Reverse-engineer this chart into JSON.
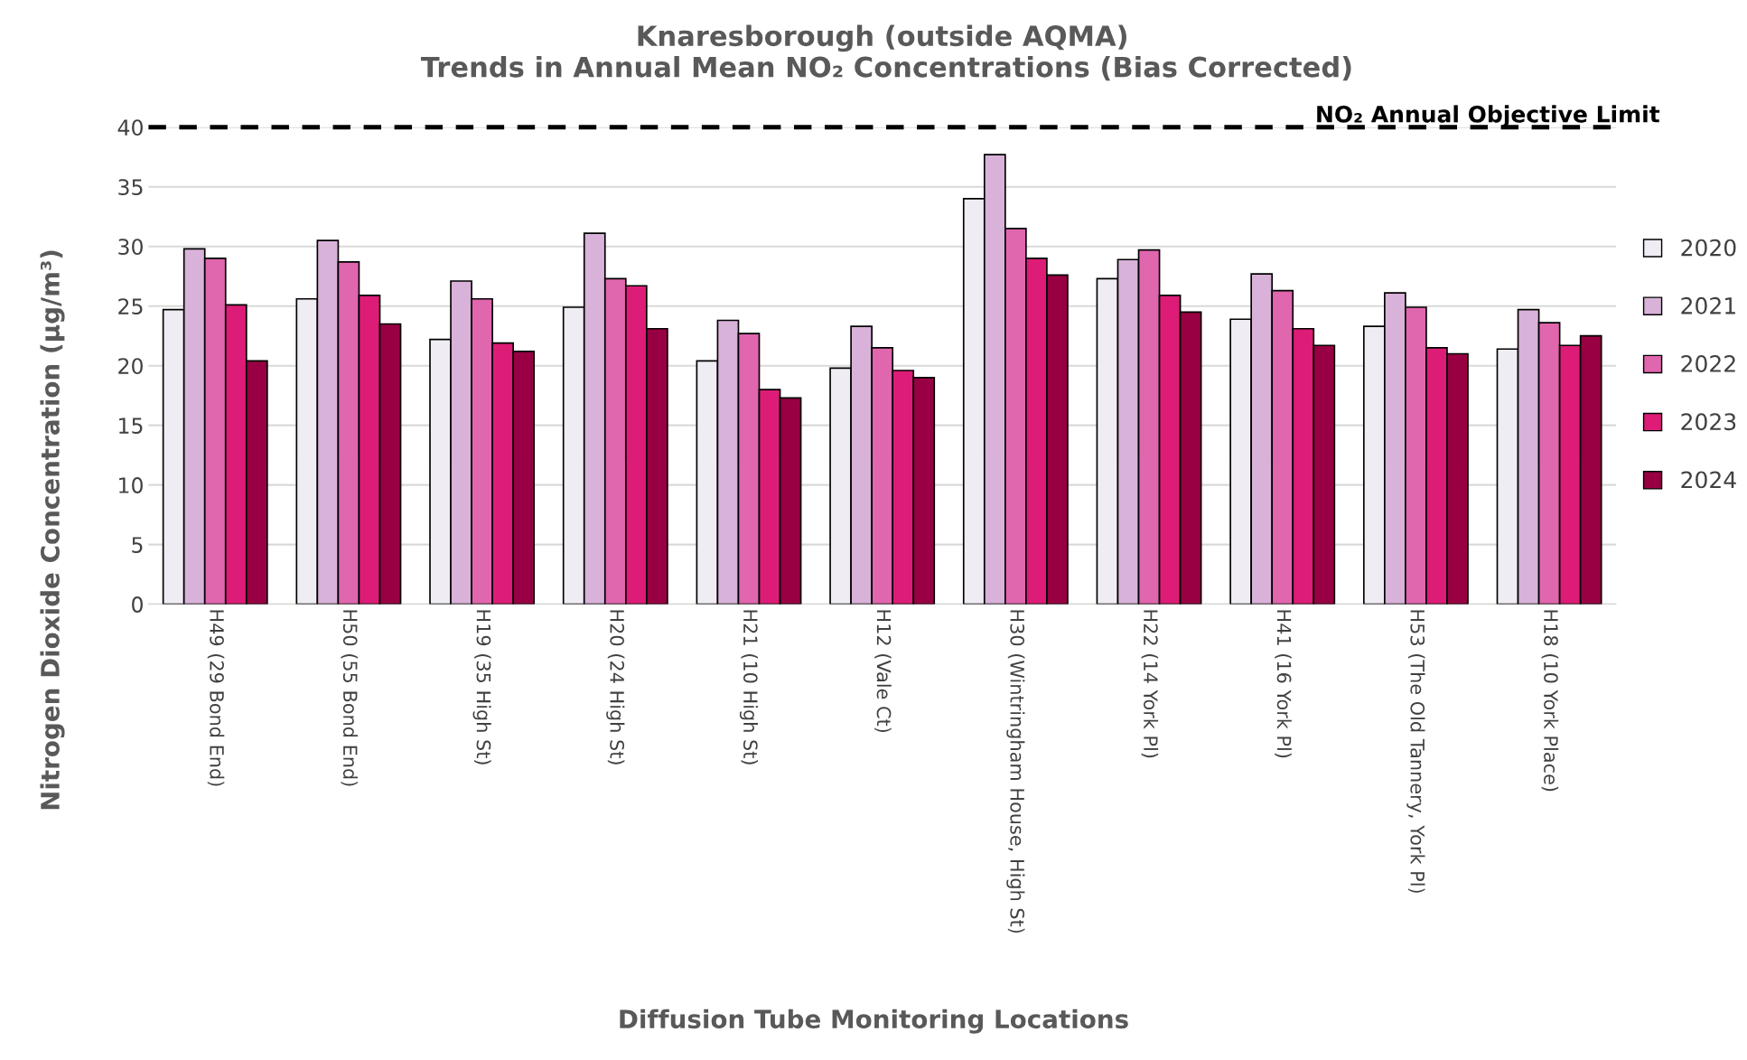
{
  "chart_data": {
    "type": "bar",
    "title": "Knaresborough (outside AQMA)\n Trends in Annual Mean NO₂ Concentrations (Bias Corrected)",
    "xlabel": "Diffusion Tube Monitoring Locations",
    "ylabel": "Nitrogen Dioxide Concentration (µg/m³)",
    "categories": [
      "H49 (29 Bond End)",
      "H50 (55 Bond End)",
      "H19 (35 High St)",
      "H20 (24 High St)",
      "H21 (10 High St)",
      "H12 (Vale Ct)",
      "H30 (Wintringham House, High St)",
      "H22 (14 York Pl)",
      "H41 (16 York Pl)",
      "H53 (The Old Tannery, York Pl)",
      "H18 (10 York Place)"
    ],
    "series": [
      {
        "name": "2020",
        "color": "#f0ecf4",
        "values": [
          24.7,
          25.6,
          22.2,
          24.9,
          20.4,
          19.8,
          34.0,
          27.3,
          23.9,
          23.3,
          21.4
        ]
      },
      {
        "name": "2021",
        "color": "#d8b2d8",
        "values": [
          29.8,
          30.5,
          27.1,
          31.1,
          23.8,
          23.3,
          37.7,
          28.9,
          27.7,
          26.1,
          24.7
        ]
      },
      {
        "name": "2022",
        "color": "#e066ae",
        "values": [
          29.0,
          28.7,
          25.6,
          27.3,
          22.7,
          21.5,
          31.5,
          29.7,
          26.3,
          24.9,
          23.6
        ]
      },
      {
        "name": "2023",
        "color": "#dd1c77",
        "values": [
          25.1,
          25.9,
          21.9,
          26.7,
          18.0,
          19.6,
          29.0,
          25.9,
          23.1,
          21.5,
          21.7
        ]
      },
      {
        "name": "2024",
        "color": "#980043",
        "values": [
          20.4,
          23.5,
          21.2,
          23.1,
          17.3,
          19.0,
          27.6,
          24.5,
          21.7,
          21.0,
          22.5
        ]
      }
    ],
    "ylim": [
      0,
      40
    ],
    "yticks": [
      0,
      5,
      10,
      15,
      20,
      25,
      30,
      35,
      40
    ],
    "grid": "y",
    "legend": "right",
    "ref_lines": [
      {
        "axis": "y",
        "value": 40,
        "label": "NO₂ Annual Objective Limit",
        "color": "#000000",
        "line_style": "dashed"
      }
    ]
  }
}
